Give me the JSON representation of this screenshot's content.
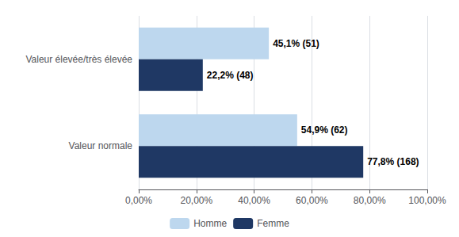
{
  "chart_data": {
    "type": "bar",
    "orientation": "horizontal",
    "categories": [
      "Valeur élevée/très élevée",
      "Valeur normale"
    ],
    "series": [
      {
        "name": "Homme",
        "color": "#BDD7EE",
        "values": [
          45.1,
          54.9
        ],
        "value_labels": [
          "45,1% (51)",
          "54,9% (62)"
        ]
      },
      {
        "name": "Femme",
        "color": "#1F3864",
        "values": [
          22.2,
          77.8
        ],
        "value_labels": [
          "22,2% (48)",
          "77,8% (168)"
        ]
      }
    ],
    "xlim": [
      0,
      100
    ],
    "xticks": [
      {
        "value": 0,
        "label": "0,00%"
      },
      {
        "value": 20,
        "label": "20,00%"
      },
      {
        "value": 40,
        "label": "40,00%"
      },
      {
        "value": 60,
        "label": "60,00%"
      },
      {
        "value": 80,
        "label": "80,00%"
      },
      {
        "value": 100,
        "label": "100,00%"
      }
    ],
    "grid": true,
    "legend": "bottom",
    "data_labels": true
  }
}
